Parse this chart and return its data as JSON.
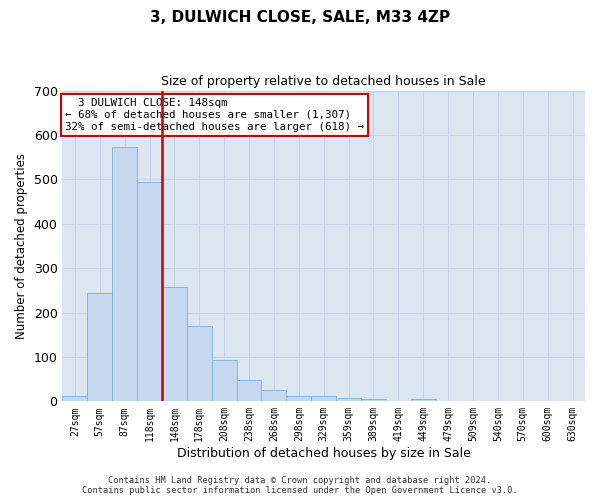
{
  "title_line1": "3, DULWICH CLOSE, SALE, M33 4ZP",
  "title_line2": "Size of property relative to detached houses in Sale",
  "xlabel": "Distribution of detached houses by size in Sale",
  "ylabel": "Number of detached properties",
  "bar_labels": [
    "27sqm",
    "57sqm",
    "87sqm",
    "118sqm",
    "148sqm",
    "178sqm",
    "208sqm",
    "238sqm",
    "268sqm",
    "298sqm",
    "329sqm",
    "359sqm",
    "389sqm",
    "419sqm",
    "449sqm",
    "479sqm",
    "509sqm",
    "540sqm",
    "570sqm",
    "600sqm",
    "630sqm"
  ],
  "bar_values": [
    12,
    243,
    572,
    495,
    258,
    170,
    92,
    47,
    25,
    13,
    11,
    7,
    5,
    1,
    5,
    0,
    0,
    0,
    0,
    0,
    0
  ],
  "bar_color": "#c5d8ef",
  "bar_edge_color": "#7bafd4",
  "vline_color": "#cc0000",
  "ylim": [
    0,
    700
  ],
  "yticks": [
    0,
    100,
    200,
    300,
    400,
    500,
    600,
    700
  ],
  "annotation_text": "  3 DULWICH CLOSE: 148sqm\n← 68% of detached houses are smaller (1,307)\n32% of semi-detached houses are larger (618) →",
  "annotation_box_color": "#ffffff",
  "annotation_box_edge": "#cc0000",
  "grid_color": "#c8d4e5",
  "background_color": "#dce6f1",
  "footer_line1": "Contains HM Land Registry data © Crown copyright and database right 2024.",
  "footer_line2": "Contains public sector information licensed under the Open Government Licence v3.0.",
  "vline_index": 4
}
